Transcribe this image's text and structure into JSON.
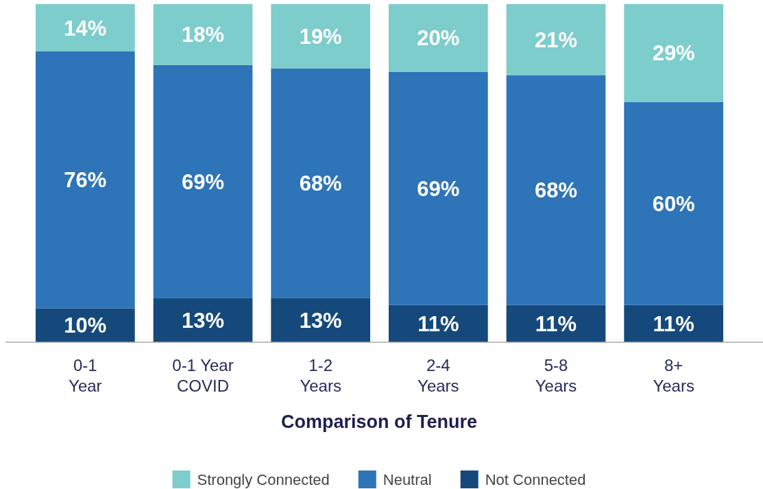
{
  "chart_data": {
    "type": "bar",
    "stacked": true,
    "legend": "bottom",
    "grid": false,
    "xlabel": "Comparison of Tenure",
    "categories": [
      "0-1\nYear",
      "0-1 Year\nCOVID",
      "1-2\nYears",
      "2-4\nYears",
      "5-8\nYears",
      "8+\nYears"
    ],
    "series": [
      {
        "name": "Not Connected",
        "color": "#15497c",
        "values": [
          10,
          13,
          13,
          11,
          11,
          11
        ],
        "value_labels": [
          "10%",
          "13%",
          "13%",
          "11%",
          "11%",
          "11%"
        ]
      },
      {
        "name": "Neutral",
        "color": "#2e74b8",
        "values": [
          76,
          69,
          68,
          69,
          68,
          60
        ],
        "value_labels": [
          "76%",
          "69%",
          "68%",
          "69%",
          "68%",
          "60%"
        ]
      },
      {
        "name": "Strongly Connected",
        "color": "#7ccdcc",
        "values": [
          14,
          18,
          19,
          20,
          21,
          29
        ],
        "value_labels": [
          "14%",
          "18%",
          "19%",
          "20%",
          "21%",
          "29%"
        ]
      }
    ]
  }
}
